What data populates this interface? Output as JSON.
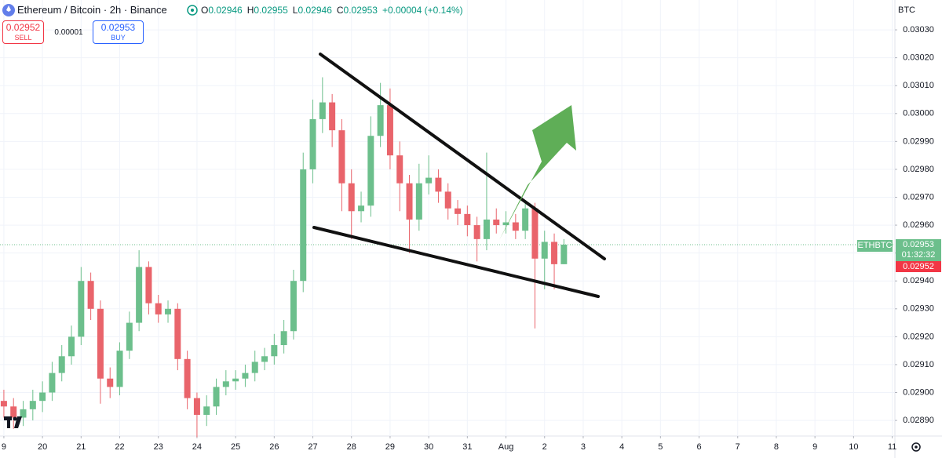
{
  "header": {
    "title": "Ethereum / Bitcoin · 2h · Binance",
    "ohlc": [
      {
        "label": "O",
        "value": "0.02946"
      },
      {
        "label": "H",
        "value": "0.02955"
      },
      {
        "label": "L",
        "value": "0.02946"
      },
      {
        "label": "C",
        "value": "0.02953"
      }
    ],
    "change": "+0.00004 (+0.14%)"
  },
  "trade": {
    "sell_price": "0.02952",
    "sell_label": "SELL",
    "spread": "0.00001",
    "buy_price": "0.02953",
    "buy_label": "BUY"
  },
  "price_scale": {
    "currency": "BTC",
    "symbol": "ETHBTC",
    "last": "0.02953",
    "countdown": "01:32:32",
    "bid": "0.02952"
  },
  "chart_data": {
    "type": "candlestick",
    "up_color": "#6cbf8c",
    "down_color": "#e9646b",
    "grid": true,
    "xlim": [
      -0.1,
      23.07
    ],
    "ylim": [
      0.028844,
      0.030407
    ],
    "xticks": [
      {
        "value": 0,
        "label": "9"
      },
      {
        "value": 1,
        "label": "20"
      },
      {
        "value": 2,
        "label": "21"
      },
      {
        "value": 3,
        "label": "22"
      },
      {
        "value": 4,
        "label": "23"
      },
      {
        "value": 5,
        "label": "24"
      },
      {
        "value": 6,
        "label": "25"
      },
      {
        "value": 7,
        "label": "26"
      },
      {
        "value": 8,
        "label": "27"
      },
      {
        "value": 9,
        "label": "28"
      },
      {
        "value": 10,
        "label": "29"
      },
      {
        "value": 11,
        "label": "30"
      },
      {
        "value": 12,
        "label": "31"
      },
      {
        "value": 13,
        "label": "Aug"
      },
      {
        "value": 14,
        "label": "2"
      },
      {
        "value": 15,
        "label": "3"
      },
      {
        "value": 16,
        "label": "4"
      },
      {
        "value": 17,
        "label": "5"
      },
      {
        "value": 18,
        "label": "6"
      },
      {
        "value": 19,
        "label": "7"
      },
      {
        "value": 20,
        "label": "8"
      },
      {
        "value": 21,
        "label": "9"
      },
      {
        "value": 22,
        "label": "10"
      },
      {
        "value": 23,
        "label": "11"
      }
    ],
    "yticks": [
      {
        "value": 0.0303,
        "label": "0.03030"
      },
      {
        "value": 0.0302,
        "label": "0.03020"
      },
      {
        "value": 0.0301,
        "label": "0.03010"
      },
      {
        "value": 0.03,
        "label": "0.03000"
      },
      {
        "value": 0.0299,
        "label": "0.02990"
      },
      {
        "value": 0.0298,
        "label": "0.02980"
      },
      {
        "value": 0.0297,
        "label": "0.02970"
      },
      {
        "value": 0.0296,
        "label": "0.02960"
      },
      {
        "value": 0.0295,
        "label": "0.02950"
      },
      {
        "value": 0.0294,
        "label": "0.02940"
      },
      {
        "value": 0.0293,
        "label": "0.02930"
      },
      {
        "value": 0.0292,
        "label": "0.02920"
      },
      {
        "value": 0.0291,
        "label": "0.02910"
      },
      {
        "value": 0.029,
        "label": "0.02900"
      },
      {
        "value": 0.0289,
        "label": "0.02890"
      }
    ],
    "last_price": 0.02953,
    "x": [
      0,
      0.25,
      0.5,
      0.75,
      1,
      1.25,
      1.5,
      1.75,
      2,
      2.25,
      2.5,
      2.75,
      3,
      3.25,
      3.5,
      3.75,
      4,
      4.25,
      4.5,
      4.75,
      5,
      5.25,
      5.5,
      5.75,
      6,
      6.25,
      6.5,
      6.75,
      7,
      7.25,
      7.5,
      7.75,
      8,
      8.25,
      8.5,
      8.75,
      9,
      9.25,
      9.5,
      9.75,
      10,
      10.25,
      10.5,
      10.75,
      11,
      11.25,
      11.5,
      11.75,
      12,
      12.25,
      12.5,
      12.75,
      13,
      13.25,
      13.5,
      13.75,
      14,
      14.25,
      14.5
    ],
    "open": [
      0.02897,
      0.02895,
      0.02891,
      0.02894,
      0.02897,
      0.029,
      0.02907,
      0.02913,
      0.0292,
      0.0294,
      0.0293,
      0.02905,
      0.02902,
      0.02915,
      0.02925,
      0.02945,
      0.02932,
      0.02928,
      0.0293,
      0.02912,
      0.02898,
      0.02892,
      0.02895,
      0.02902,
      0.02904,
      0.02905,
      0.02907,
      0.02911,
      0.02913,
      0.02917,
      0.02922,
      0.0294,
      0.0298,
      0.02998,
      0.03004,
      0.02994,
      0.02975,
      0.02965,
      0.02967,
      0.02992,
      0.03003,
      0.02985,
      0.02975,
      0.02962,
      0.02975,
      0.02977,
      0.02972,
      0.02966,
      0.02964,
      0.0296,
      0.02955,
      0.02962,
      0.0296,
      0.02961,
      0.02958,
      0.02966,
      0.02948,
      0.02954,
      0.02946
    ],
    "high": [
      0.02901,
      0.02898,
      0.02897,
      0.02901,
      0.02904,
      0.02911,
      0.02917,
      0.02924,
      0.02945,
      0.02943,
      0.02933,
      0.02909,
      0.02918,
      0.02929,
      0.02951,
      0.02947,
      0.02935,
      0.02933,
      0.02932,
      0.02915,
      0.029,
      0.02899,
      0.02905,
      0.02908,
      0.02908,
      0.0291,
      0.02915,
      0.02916,
      0.02921,
      0.02926,
      0.02944,
      0.02986,
      0.03005,
      0.03013,
      0.03007,
      0.02998,
      0.0298,
      0.02972,
      0.02999,
      0.03011,
      0.03009,
      0.0299,
      0.02978,
      0.02982,
      0.02985,
      0.0298,
      0.02975,
      0.02969,
      0.02967,
      0.02963,
      0.02986,
      0.02966,
      0.02965,
      0.02964,
      0.02969,
      0.02968,
      0.02958,
      0.02957,
      0.02955
    ],
    "low": [
      0.02891,
      0.02887,
      0.02888,
      0.0289,
      0.02893,
      0.02897,
      0.02904,
      0.0291,
      0.02917,
      0.02926,
      0.02896,
      0.02898,
      0.02899,
      0.02912,
      0.02922,
      0.02928,
      0.02925,
      0.02925,
      0.02908,
      0.02894,
      0.02884,
      0.02888,
      0.02892,
      0.02899,
      0.02901,
      0.02902,
      0.02904,
      0.02908,
      0.0291,
      0.02914,
      0.02919,
      0.02936,
      0.02975,
      0.02993,
      0.02988,
      0.02965,
      0.02955,
      0.02961,
      0.02963,
      0.02988,
      0.0298,
      0.02965,
      0.0295,
      0.02958,
      0.02971,
      0.02968,
      0.02962,
      0.0296,
      0.02956,
      0.02947,
      0.02951,
      0.02957,
      0.02957,
      0.02955,
      0.02955,
      0.02923,
      0.02937,
      0.02937,
      0.02946
    ],
    "close": [
      0.02895,
      0.02891,
      0.02894,
      0.02897,
      0.029,
      0.02907,
      0.02913,
      0.0292,
      0.0294,
      0.0293,
      0.02905,
      0.02902,
      0.02915,
      0.02925,
      0.02945,
      0.02932,
      0.02928,
      0.0293,
      0.02912,
      0.02898,
      0.02892,
      0.02895,
      0.02902,
      0.02904,
      0.02905,
      0.02907,
      0.02911,
      0.02913,
      0.02917,
      0.02922,
      0.0294,
      0.0298,
      0.02998,
      0.03004,
      0.02994,
      0.02975,
      0.02965,
      0.02967,
      0.02992,
      0.03003,
      0.02985,
      0.02975,
      0.02962,
      0.02975,
      0.02977,
      0.02972,
      0.02966,
      0.02964,
      0.0296,
      0.02955,
      0.02962,
      0.0296,
      0.02961,
      0.02958,
      0.02966,
      0.02948,
      0.02954,
      0.02946,
      0.02953
    ]
  }
}
